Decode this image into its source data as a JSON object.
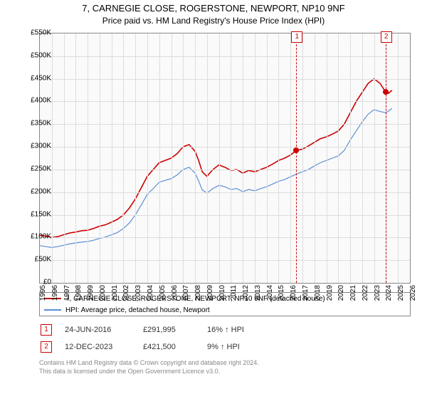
{
  "title_line1": "7, CARNEGIE CLOSE, ROGERSTONE, NEWPORT, NP10 9NF",
  "title_line2": "Price paid vs. HM Land Registry's House Price Index (HPI)",
  "chart": {
    "type": "line",
    "background_color": "#fafafa",
    "grid_color": "#dddddd",
    "border_color": "#888888",
    "xlim": [
      1995,
      2026
    ],
    "ylim": [
      0,
      550000
    ],
    "ytick_step": 50000,
    "yticks_labels": [
      "£0",
      "£50K",
      "£100K",
      "£150K",
      "£200K",
      "£250K",
      "£300K",
      "£350K",
      "£400K",
      "£450K",
      "£500K",
      "£550K"
    ],
    "xticks": [
      1995,
      1996,
      1997,
      1998,
      1999,
      2000,
      2001,
      2002,
      2003,
      2004,
      2005,
      2006,
      2007,
      2008,
      2009,
      2010,
      2011,
      2012,
      2013,
      2014,
      2015,
      2016,
      2017,
      2018,
      2019,
      2020,
      2021,
      2022,
      2023,
      2024,
      2025,
      2026
    ],
    "series": [
      {
        "name": "7, CARNEGIE CLOSE, ROGERSTONE, NEWPORT, NP10 9NF (detached house)",
        "color": "#cc0000",
        "line_width": 1.6,
        "data": [
          [
            1995,
            105000
          ],
          [
            1995.5,
            103000
          ],
          [
            1996,
            100000
          ],
          [
            1996.5,
            102000
          ],
          [
            1997,
            106000
          ],
          [
            1997.5,
            110000
          ],
          [
            1998,
            112000
          ],
          [
            1998.5,
            115000
          ],
          [
            1999,
            116000
          ],
          [
            1999.5,
            120000
          ],
          [
            2000,
            125000
          ],
          [
            2000.5,
            128000
          ],
          [
            2001,
            134000
          ],
          [
            2001.5,
            140000
          ],
          [
            2002,
            150000
          ],
          [
            2002.5,
            165000
          ],
          [
            2003,
            185000
          ],
          [
            2003.5,
            210000
          ],
          [
            2004,
            235000
          ],
          [
            2004.5,
            250000
          ],
          [
            2005,
            265000
          ],
          [
            2005.5,
            270000
          ],
          [
            2006,
            275000
          ],
          [
            2006.5,
            285000
          ],
          [
            2007,
            300000
          ],
          [
            2007.5,
            305000
          ],
          [
            2008,
            290000
          ],
          [
            2008.3,
            270000
          ],
          [
            2008.6,
            245000
          ],
          [
            2009,
            235000
          ],
          [
            2009.5,
            250000
          ],
          [
            2010,
            260000
          ],
          [
            2010.5,
            255000
          ],
          [
            2011,
            248000
          ],
          [
            2011.5,
            250000
          ],
          [
            2012,
            242000
          ],
          [
            2012.5,
            248000
          ],
          [
            2013,
            245000
          ],
          [
            2013.5,
            250000
          ],
          [
            2014,
            255000
          ],
          [
            2014.5,
            262000
          ],
          [
            2015,
            270000
          ],
          [
            2015.5,
            275000
          ],
          [
            2016,
            282000
          ],
          [
            2016.48,
            291995
          ],
          [
            2017,
            295000
          ],
          [
            2017.5,
            302000
          ],
          [
            2018,
            310000
          ],
          [
            2018.5,
            318000
          ],
          [
            2019,
            322000
          ],
          [
            2019.5,
            328000
          ],
          [
            2020,
            335000
          ],
          [
            2020.5,
            350000
          ],
          [
            2021,
            375000
          ],
          [
            2021.5,
            400000
          ],
          [
            2022,
            420000
          ],
          [
            2022.5,
            440000
          ],
          [
            2023,
            450000
          ],
          [
            2023.5,
            440000
          ],
          [
            2023.95,
            421500
          ],
          [
            2024.2,
            418000
          ],
          [
            2024.5,
            425000
          ]
        ]
      },
      {
        "name": "HPI: Average price, detached house, Newport",
        "color": "#5b8fd6",
        "line_width": 1.2,
        "data": [
          [
            1995,
            82000
          ],
          [
            1995.5,
            80000
          ],
          [
            1996,
            78000
          ],
          [
            1996.5,
            80000
          ],
          [
            1997,
            83000
          ],
          [
            1997.5,
            86000
          ],
          [
            1998,
            88000
          ],
          [
            1998.5,
            90000
          ],
          [
            1999,
            91000
          ],
          [
            1999.5,
            94000
          ],
          [
            2000,
            98000
          ],
          [
            2000.5,
            101000
          ],
          [
            2001,
            106000
          ],
          [
            2001.5,
            111000
          ],
          [
            2002,
            120000
          ],
          [
            2002.5,
            132000
          ],
          [
            2003,
            150000
          ],
          [
            2003.5,
            172000
          ],
          [
            2004,
            195000
          ],
          [
            2004.5,
            208000
          ],
          [
            2005,
            222000
          ],
          [
            2005.5,
            226000
          ],
          [
            2006,
            230000
          ],
          [
            2006.5,
            238000
          ],
          [
            2007,
            250000
          ],
          [
            2007.5,
            255000
          ],
          [
            2008,
            242000
          ],
          [
            2008.3,
            225000
          ],
          [
            2008.6,
            205000
          ],
          [
            2009,
            198000
          ],
          [
            2009.5,
            208000
          ],
          [
            2010,
            215000
          ],
          [
            2010.5,
            212000
          ],
          [
            2011,
            206000
          ],
          [
            2011.5,
            208000
          ],
          [
            2012,
            201000
          ],
          [
            2012.5,
            206000
          ],
          [
            2013,
            203000
          ],
          [
            2013.5,
            208000
          ],
          [
            2014,
            212000
          ],
          [
            2014.5,
            218000
          ],
          [
            2015,
            224000
          ],
          [
            2015.5,
            228000
          ],
          [
            2016,
            234000
          ],
          [
            2016.5,
            240000
          ],
          [
            2017,
            245000
          ],
          [
            2017.5,
            250000
          ],
          [
            2018,
            258000
          ],
          [
            2018.5,
            265000
          ],
          [
            2019,
            270000
          ],
          [
            2019.5,
            275000
          ],
          [
            2020,
            280000
          ],
          [
            2020.5,
            292000
          ],
          [
            2021,
            315000
          ],
          [
            2021.5,
            335000
          ],
          [
            2022,
            355000
          ],
          [
            2022.5,
            372000
          ],
          [
            2023,
            382000
          ],
          [
            2023.5,
            378000
          ],
          [
            2024,
            375000
          ],
          [
            2024.5,
            385000
          ]
        ]
      }
    ],
    "markers": [
      {
        "id": "1",
        "x": 2016.48,
        "y": 291995,
        "box_top": -3
      },
      {
        "id": "2",
        "x": 2023.95,
        "y": 421500,
        "box_top": -3
      }
    ],
    "marker_line_color": "#cc0000",
    "marker_dot_color": "#cc0000"
  },
  "legend": {
    "rows": [
      {
        "color": "#cc0000",
        "label": "7, CARNEGIE CLOSE, ROGERSTONE, NEWPORT, NP10 9NF (detached house)"
      },
      {
        "color": "#5b8fd6",
        "label": "HPI: Average price, detached house, Newport"
      }
    ]
  },
  "table": {
    "rows": [
      {
        "id": "1",
        "date": "24-JUN-2016",
        "price": "£291,995",
        "delta": "16% ↑ HPI"
      },
      {
        "id": "2",
        "date": "12-DEC-2023",
        "price": "£421,500",
        "delta": "9% ↑ HPI"
      }
    ]
  },
  "footer_line1": "Contains HM Land Registry data © Crown copyright and database right 2024.",
  "footer_line2": "This data is licensed under the Open Government Licence v3.0."
}
